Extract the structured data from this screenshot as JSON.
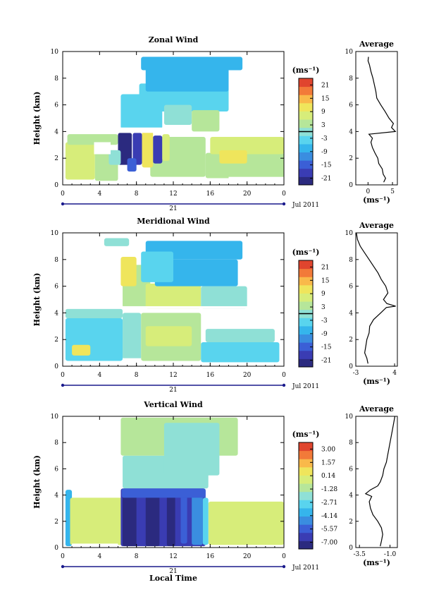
{
  "colors": {
    "scale": [
      "#2b2a7f",
      "#3a3cb3",
      "#3b5fd6",
      "#3a8de0",
      "#35b5ec",
      "#59d4ee",
      "#8fe0d6",
      "#b6e69a",
      "#d7ed7a",
      "#efe55c",
      "#f9b94a",
      "#f27a39",
      "#e0452e"
    ],
    "white": "#ffffff",
    "axis": "#000000",
    "timebar": "#1a1a8c"
  },
  "chart_data": [
    {
      "type": "heatmap",
      "title": "Zonal Wind",
      "ylabel": "Height (km)",
      "xlabel": "",
      "x_ticks": [
        "0",
        "4",
        "8",
        "12",
        "16",
        "20",
        "0"
      ],
      "x_range": [
        0,
        24
      ],
      "y_ticks": [
        "0",
        "2",
        "4",
        "6",
        "8",
        "10"
      ],
      "y_range": [
        0,
        10
      ],
      "date_day": "21",
      "date_month": "Jul 2011",
      "colorbar": {
        "unit": "(ms⁻¹)",
        "ticks": [
          "21",
          "15",
          "9",
          "3",
          "-3",
          "-9",
          "-15",
          "-21"
        ],
        "range": [
          -21,
          21
        ],
        "zero_line": 0
      },
      "profile": {
        "title": "Average",
        "xlabel": "(ms⁻¹)",
        "x_ticks": [
          "0",
          "5"
        ],
        "x_range": [
          -2.5,
          6
        ],
        "points": [
          [
            3.2,
            0.2
          ],
          [
            3.6,
            0.5
          ],
          [
            3.1,
            0.8
          ],
          [
            2.9,
            1.2
          ],
          [
            2.2,
            1.6
          ],
          [
            2.0,
            2.0
          ],
          [
            1.4,
            2.4
          ],
          [
            0.9,
            2.8
          ],
          [
            0.6,
            3.2
          ],
          [
            0.9,
            3.5
          ],
          [
            0.2,
            3.8
          ],
          [
            5.6,
            4.0
          ],
          [
            4.8,
            4.3
          ],
          [
            5.2,
            4.6
          ],
          [
            4.3,
            5.0
          ],
          [
            3.5,
            5.5
          ],
          [
            2.6,
            6.0
          ],
          [
            1.8,
            6.5
          ],
          [
            1.6,
            7.0
          ],
          [
            1.3,
            7.5
          ],
          [
            1.0,
            8.0
          ],
          [
            0.6,
            8.5
          ],
          [
            0.3,
            9.0
          ],
          [
            0.0,
            9.3
          ],
          [
            0.1,
            9.6
          ]
        ]
      }
    },
    {
      "type": "heatmap",
      "title": "Meridional Wind",
      "ylabel": "Height (km)",
      "xlabel": "",
      "x_ticks": [
        "0",
        "4",
        "8",
        "12",
        "16",
        "20",
        "0"
      ],
      "x_range": [
        0,
        24
      ],
      "y_ticks": [
        "0",
        "2",
        "4",
        "6",
        "8",
        "10"
      ],
      "y_range": [
        0,
        10
      ],
      "date_day": "21",
      "date_month": "Jul 2011",
      "colorbar": {
        "unit": "(ms⁻¹)",
        "ticks": [
          "21",
          "15",
          "9",
          "3",
          "-3",
          "-9",
          "-15",
          "-21"
        ],
        "range": [
          -21,
          21
        ],
        "zero_line": 0
      },
      "profile": {
        "title": "Average",
        "xlabel": "(ms⁻¹)",
        "x_ticks": [
          "-3",
          "4"
        ],
        "x_range": [
          -3,
          4.5
        ],
        "points": [
          [
            -0.8,
            0.2
          ],
          [
            -1.0,
            0.6
          ],
          [
            -1.4,
            1.0
          ],
          [
            -1.2,
            1.5
          ],
          [
            -1.0,
            2.0
          ],
          [
            -0.6,
            2.5
          ],
          [
            -0.5,
            3.0
          ],
          [
            0.2,
            3.5
          ],
          [
            1.5,
            4.0
          ],
          [
            2.5,
            4.4
          ],
          [
            4.2,
            4.5
          ],
          [
            2.6,
            4.7
          ],
          [
            2.0,
            5.0
          ],
          [
            2.8,
            5.5
          ],
          [
            2.4,
            6.0
          ],
          [
            1.6,
            6.5
          ],
          [
            1.0,
            7.0
          ],
          [
            0.2,
            7.5
          ],
          [
            -0.6,
            8.0
          ],
          [
            -1.4,
            8.5
          ],
          [
            -2.2,
            9.0
          ],
          [
            -2.7,
            9.5
          ],
          [
            -2.9,
            10.0
          ]
        ]
      }
    },
    {
      "type": "heatmap",
      "title": "Vertical Wind",
      "ylabel": "Height (km)",
      "xlabel": "Local Time",
      "x_ticks": [
        "0",
        "4",
        "8",
        "12",
        "16",
        "20",
        "0"
      ],
      "x_range": [
        0,
        24
      ],
      "y_ticks": [
        "0",
        "2",
        "4",
        "6",
        "8",
        "10"
      ],
      "y_range": [
        0,
        10
      ],
      "date_day": "21",
      "date_month": "Jul 2011",
      "colorbar": {
        "unit": "(ms⁻¹)",
        "ticks": [
          "3.00",
          "1.57",
          "0.14",
          "-1.28",
          "-2.71",
          "-4.14",
          "-5.57",
          "-7.00"
        ],
        "range": [
          -7.0,
          3.0
        ],
        "zero_line": null
      },
      "profile": {
        "title": "Average",
        "xlabel": "(ms⁻¹)",
        "x_ticks": [
          "-3.5",
          "-1.0"
        ],
        "x_range": [
          -3.8,
          -0.4
        ],
        "points": [
          [
            -1.8,
            0.1
          ],
          [
            -1.7,
            0.5
          ],
          [
            -1.6,
            1.0
          ],
          [
            -1.7,
            1.5
          ],
          [
            -2.0,
            2.0
          ],
          [
            -2.4,
            2.5
          ],
          [
            -2.6,
            3.0
          ],
          [
            -2.7,
            3.5
          ],
          [
            -2.5,
            3.9
          ],
          [
            -3.0,
            4.1
          ],
          [
            -2.6,
            4.4
          ],
          [
            -2.0,
            4.7
          ],
          [
            -1.8,
            5.0
          ],
          [
            -1.6,
            5.5
          ],
          [
            -1.5,
            6.0
          ],
          [
            -1.3,
            6.5
          ],
          [
            -1.2,
            7.0
          ],
          [
            -1.0,
            8.0
          ],
          [
            -0.8,
            9.0
          ],
          [
            -0.6,
            10.0
          ]
        ]
      }
    }
  ]
}
